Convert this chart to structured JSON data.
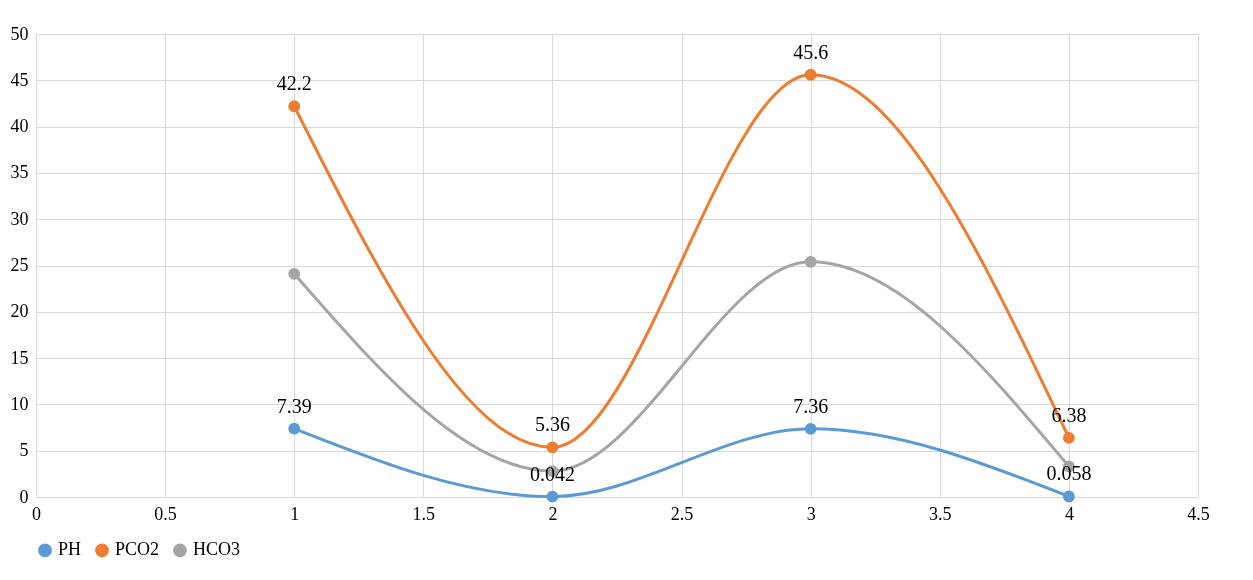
{
  "chart_data": {
    "type": "line",
    "x": [
      1,
      2,
      3,
      4
    ],
    "series": [
      {
        "name": "PH",
        "color": "#5b9bd5",
        "values": [
          7.39,
          0.042,
          7.36,
          0.058
        ],
        "value_labels": [
          "7.39",
          "0.042",
          "7.36",
          "0.058"
        ]
      },
      {
        "name": "PCO2",
        "color": "#ed7d31",
        "values": [
          42.2,
          5.36,
          45.6,
          6.38
        ],
        "value_labels": [
          "42.2",
          "5.36",
          "45.6",
          "6.38"
        ]
      },
      {
        "name": "HCO3",
        "color": "#a5a5a5",
        "values": [
          24.1,
          2.8,
          25.4,
          3.3
        ]
      }
    ],
    "xlim": [
      0,
      4.5
    ],
    "xticks": [
      0,
      0.5,
      1,
      1.5,
      2,
      2.5,
      3,
      3.5,
      4,
      4.5
    ],
    "ylim": [
      0,
      50
    ],
    "yticks": [
      0,
      5,
      10,
      15,
      20,
      25,
      30,
      35,
      40,
      45,
      50
    ],
    "grid": true,
    "legend": "bottom",
    "marker": "circle",
    "line_style": "solid"
  }
}
